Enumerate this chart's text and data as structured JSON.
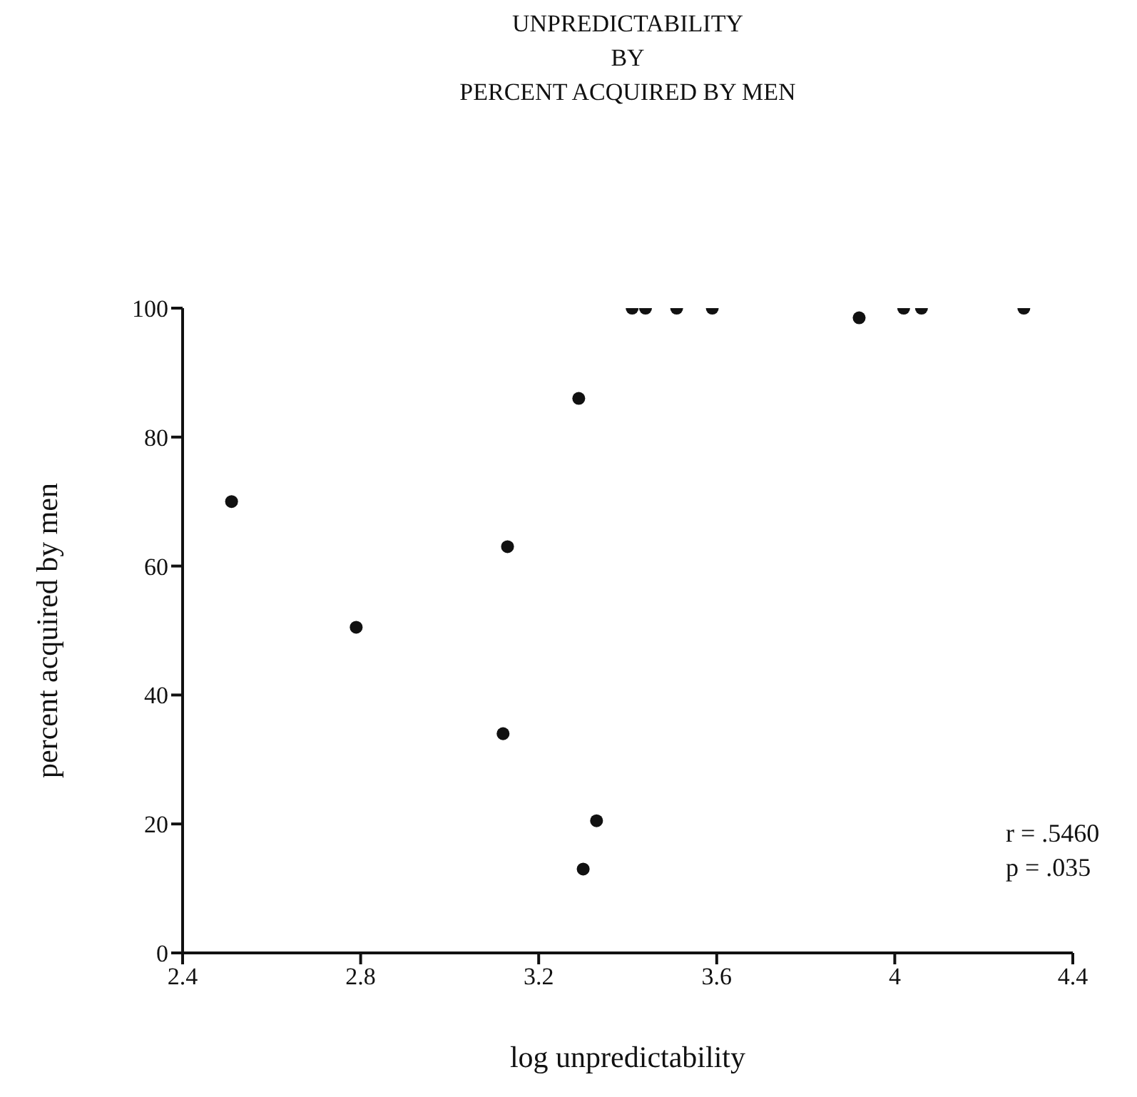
{
  "chart_data": {
    "type": "scatter",
    "title": "UNPREDICTABILITY\nBY\nPERCENT ACQUIRED BY MEN",
    "xlabel": "log unpredictability",
    "ylabel": "percent acquired by men",
    "annotations": [
      "r = .5460",
      "p = .035"
    ],
    "x": [
      2.51,
      2.79,
      3.13,
      3.12,
      3.29,
      3.3,
      3.33,
      3.41,
      3.44,
      3.51,
      3.59,
      3.92,
      4.02,
      4.06,
      4.29
    ],
    "series": [
      {
        "color": "#111111",
        "values": [
          70,
          50.5,
          63,
          34,
          86,
          13,
          20.5,
          100,
          100,
          100,
          100,
          98.5,
          100,
          100,
          100
        ]
      }
    ],
    "xlim": [
      2.4,
      4.4
    ],
    "xticks": [
      2.4,
      2.8,
      3.2,
      3.6,
      4,
      4.4
    ],
    "ylim": [
      0,
      100
    ],
    "yticks": [
      0,
      20,
      40,
      60,
      80,
      100
    ],
    "marker": "circle",
    "grid": false
  }
}
